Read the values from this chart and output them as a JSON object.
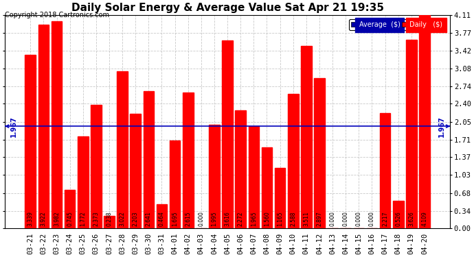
{
  "title": "Daily Solar Energy & Average Value Sat Apr 21 19:35",
  "copyright": "Copyright 2018 Cartronics.com",
  "categories": [
    "03-21",
    "03-22",
    "03-23",
    "03-24",
    "03-25",
    "03-26",
    "03-27",
    "03-28",
    "03-29",
    "03-30",
    "03-31",
    "04-01",
    "04-02",
    "04-03",
    "04-04",
    "04-05",
    "04-06",
    "04-07",
    "04-08",
    "04-09",
    "04-10",
    "04-11",
    "04-12",
    "04-13",
    "04-14",
    "04-15",
    "04-16",
    "04-17",
    "04-18",
    "04-19",
    "04-20"
  ],
  "values": [
    3.339,
    3.922,
    3.982,
    0.745,
    1.772,
    2.373,
    0.238,
    3.022,
    2.203,
    2.641,
    0.464,
    1.695,
    2.615,
    0.0,
    1.995,
    3.616,
    2.272,
    1.965,
    1.56,
    1.165,
    2.588,
    3.511,
    2.897,
    0.0,
    0.0,
    0.0,
    0.0,
    2.217,
    0.526,
    3.626,
    4.109
  ],
  "average_line": 1.967,
  "bar_color": "#FF0000",
  "avg_line_color": "#0000BB",
  "ylim": [
    0,
    4.11
  ],
  "yticks": [
    0.0,
    0.34,
    0.68,
    1.03,
    1.37,
    1.71,
    2.05,
    2.4,
    2.74,
    3.08,
    3.42,
    3.77,
    4.11
  ],
  "avg_label": "1.967",
  "background_color": "#FFFFFF",
  "grid_color": "#BBBBBB",
  "legend_avg_color": "#0000AA",
  "legend_daily_color": "#FF0000",
  "legend_avg_text": "Average  ($)",
  "legend_daily_text": "Daily   ($)",
  "title_fontsize": 11,
  "copyright_fontsize": 7,
  "bar_label_fontsize": 5.5,
  "tick_fontsize": 7.5
}
